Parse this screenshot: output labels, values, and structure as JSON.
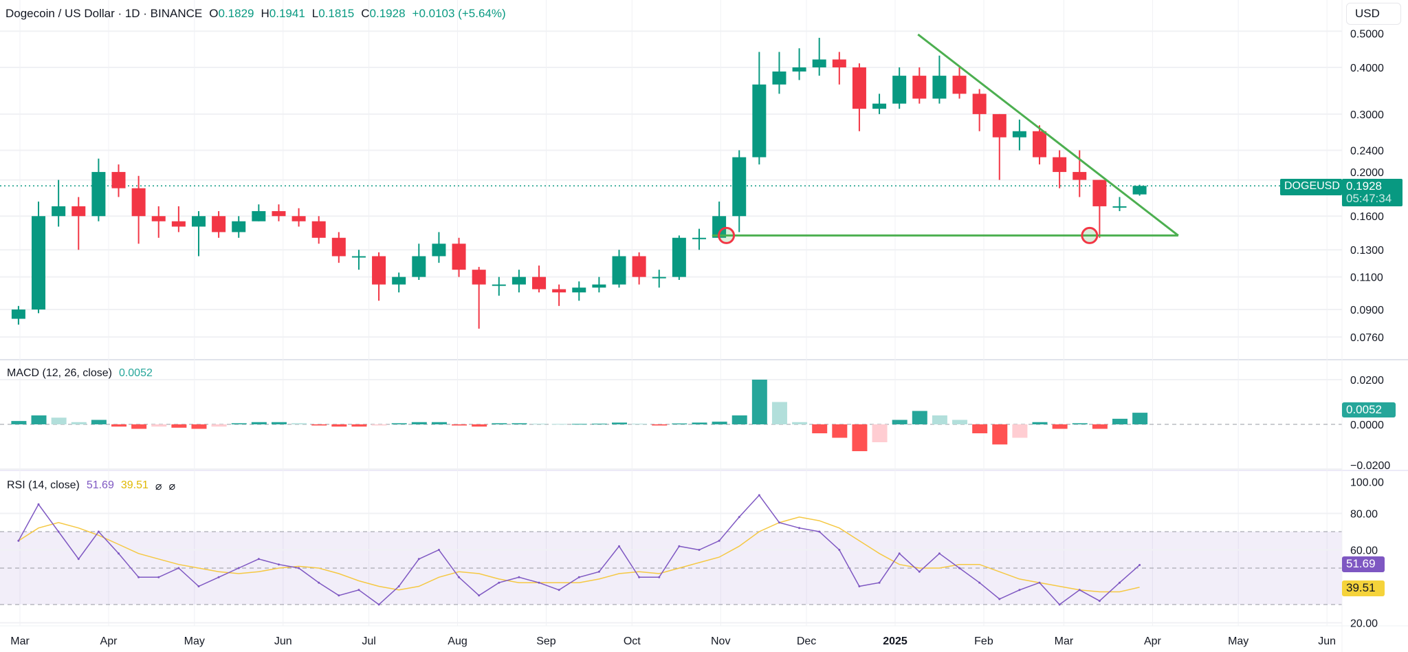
{
  "header": {
    "symbol": "Dogecoin / US Dollar · 1D · BINANCE",
    "open_label": "O",
    "open": "0.1829",
    "high_label": "H",
    "high": "0.1941",
    "low_label": "L",
    "low": "0.1815",
    "close_label": "C",
    "close": "0.1928",
    "change": "+0.0103 (+5.64%)"
  },
  "currency_button": "USD",
  "price_tag": {
    "symbol": "DOGEUSD",
    "price": "0.1928",
    "countdown": "05:47:34"
  },
  "macd": {
    "legend": "MACD (12, 26, close)",
    "value": "0.0052",
    "axis_ticks": [
      "0.0200",
      "0.0000",
      "−0.0200"
    ]
  },
  "rsi": {
    "legend": "RSI (14, close)",
    "value": "51.69",
    "ma_value": "39.51",
    "na1": "⌀",
    "na2": "⌀",
    "axis_ticks": [
      "100.00",
      "80.00",
      "60.00",
      "20.00"
    ]
  },
  "colors": {
    "up": "#089981",
    "down": "#f23645",
    "rsi": "#7e57c2",
    "rsi_ma": "#f5c842",
    "trendline": "#4caf50",
    "circle": "#f23645"
  },
  "chart_data": {
    "type": "candlestick",
    "interval_note": "weekly-aggregated approximation of the daily candles",
    "price_scale": "log",
    "price_ticks": [
      "0.5000",
      "0.4000",
      "0.3000",
      "0.2400",
      "0.2000",
      "0.1600",
      "0.1300",
      "0.1100",
      "0.0900",
      "0.0760"
    ],
    "time_ticks": [
      {
        "label": "Mar",
        "date": "2024-03-01"
      },
      {
        "label": "Apr",
        "date": "2024-04-01"
      },
      {
        "label": "May",
        "date": "2024-05-01"
      },
      {
        "label": "Jun",
        "date": "2024-06-01"
      },
      {
        "label": "Jul",
        "date": "2024-07-01"
      },
      {
        "label": "Aug",
        "date": "2024-08-01"
      },
      {
        "label": "Sep",
        "date": "2024-09-01"
      },
      {
        "label": "Oct",
        "date": "2024-10-01"
      },
      {
        "label": "Nov",
        "date": "2024-11-01"
      },
      {
        "label": "Dec",
        "date": "2024-12-01"
      },
      {
        "label": "2025",
        "date": "2025-01-01"
      },
      {
        "label": "Feb",
        "date": "2025-02-01"
      },
      {
        "label": "Mar",
        "date": "2025-03-01"
      },
      {
        "label": "Apr",
        "date": "2025-04-01"
      },
      {
        "label": "May",
        "date": "2025-05-01"
      },
      {
        "label": "Jun",
        "date": "2025-06-01"
      }
    ],
    "candles": [
      [
        "2024-02-26",
        0.085,
        0.092,
        0.082,
        0.09
      ],
      [
        "2024-03-04",
        0.09,
        0.175,
        0.088,
        0.16
      ],
      [
        "2024-03-11",
        0.16,
        0.2,
        0.15,
        0.17
      ],
      [
        "2024-03-18",
        0.17,
        0.18,
        0.13,
        0.16
      ],
      [
        "2024-03-25",
        0.16,
        0.228,
        0.155,
        0.21
      ],
      [
        "2024-04-01",
        0.21,
        0.22,
        0.18,
        0.19
      ],
      [
        "2024-04-08",
        0.19,
        0.205,
        0.135,
        0.16
      ],
      [
        "2024-04-15",
        0.16,
        0.17,
        0.14,
        0.155
      ],
      [
        "2024-04-22",
        0.155,
        0.17,
        0.145,
        0.15
      ],
      [
        "2024-04-29",
        0.15,
        0.165,
        0.125,
        0.16
      ],
      [
        "2024-05-06",
        0.16,
        0.165,
        0.14,
        0.145
      ],
      [
        "2024-05-13",
        0.145,
        0.16,
        0.14,
        0.155
      ],
      [
        "2024-05-20",
        0.155,
        0.172,
        0.155,
        0.165
      ],
      [
        "2024-05-27",
        0.165,
        0.172,
        0.155,
        0.16
      ],
      [
        "2024-06-03",
        0.16,
        0.168,
        0.15,
        0.155
      ],
      [
        "2024-06-10",
        0.155,
        0.16,
        0.135,
        0.14
      ],
      [
        "2024-06-17",
        0.14,
        0.145,
        0.12,
        0.125
      ],
      [
        "2024-06-24",
        0.125,
        0.13,
        0.115,
        0.125
      ],
      [
        "2024-07-01",
        0.125,
        0.128,
        0.095,
        0.105
      ],
      [
        "2024-07-08",
        0.105,
        0.113,
        0.1,
        0.11
      ],
      [
        "2024-07-15",
        0.11,
        0.135,
        0.108,
        0.125
      ],
      [
        "2024-07-22",
        0.125,
        0.145,
        0.12,
        0.135
      ],
      [
        "2024-07-29",
        0.135,
        0.14,
        0.11,
        0.115
      ],
      [
        "2024-08-05",
        0.115,
        0.117,
        0.08,
        0.105
      ],
      [
        "2024-08-12",
        0.105,
        0.11,
        0.098,
        0.105
      ],
      [
        "2024-08-19",
        0.105,
        0.115,
        0.1,
        0.11
      ],
      [
        "2024-08-26",
        0.11,
        0.118,
        0.1,
        0.102
      ],
      [
        "2024-09-02",
        0.102,
        0.105,
        0.092,
        0.1
      ],
      [
        "2024-09-09",
        0.1,
        0.107,
        0.095,
        0.103
      ],
      [
        "2024-09-16",
        0.103,
        0.11,
        0.1,
        0.105
      ],
      [
        "2024-09-23",
        0.105,
        0.13,
        0.103,
        0.125
      ],
      [
        "2024-09-30",
        0.125,
        0.128,
        0.105,
        0.11
      ],
      [
        "2024-10-07",
        0.11,
        0.115,
        0.103,
        0.11
      ],
      [
        "2024-10-14",
        0.11,
        0.142,
        0.108,
        0.14
      ],
      [
        "2024-10-21",
        0.14,
        0.148,
        0.13,
        0.14
      ],
      [
        "2024-10-28",
        0.14,
        0.175,
        0.14,
        0.16
      ],
      [
        "2024-11-04",
        0.16,
        0.24,
        0.145,
        0.23
      ],
      [
        "2024-11-11",
        0.23,
        0.44,
        0.22,
        0.36
      ],
      [
        "2024-11-18",
        0.36,
        0.44,
        0.34,
        0.39
      ],
      [
        "2024-11-25",
        0.39,
        0.45,
        0.37,
        0.4
      ],
      [
        "2024-12-02",
        0.4,
        0.48,
        0.38,
        0.42
      ],
      [
        "2024-12-09",
        0.42,
        0.44,
        0.36,
        0.4
      ],
      [
        "2024-12-16",
        0.4,
        0.41,
        0.27,
        0.31
      ],
      [
        "2024-12-23",
        0.31,
        0.34,
        0.3,
        0.32
      ],
      [
        "2024-12-30",
        0.32,
        0.4,
        0.31,
        0.38
      ],
      [
        "2025-01-06",
        0.38,
        0.4,
        0.32,
        0.33
      ],
      [
        "2025-01-13",
        0.33,
        0.43,
        0.32,
        0.38
      ],
      [
        "2025-01-20",
        0.38,
        0.4,
        0.33,
        0.34
      ],
      [
        "2025-01-27",
        0.34,
        0.35,
        0.27,
        0.3
      ],
      [
        "2025-02-03",
        0.3,
        0.3,
        0.2,
        0.26
      ],
      [
        "2025-02-10",
        0.26,
        0.29,
        0.24,
        0.27
      ],
      [
        "2025-02-17",
        0.27,
        0.28,
        0.22,
        0.23
      ],
      [
        "2025-02-24",
        0.23,
        0.24,
        0.19,
        0.21
      ],
      [
        "2025-03-03",
        0.21,
        0.24,
        0.18,
        0.2
      ],
      [
        "2025-03-10",
        0.2,
        0.2,
        0.14,
        0.17
      ],
      [
        "2025-03-17",
        0.17,
        0.18,
        0.165,
        0.17
      ],
      [
        "2025-03-24",
        0.1829,
        0.1941,
        0.1815,
        0.1928
      ]
    ],
    "last_price": 0.1928,
    "annotations": {
      "descending_trendline": {
        "from": {
          "date": "2025-01-09",
          "price": 0.49
        },
        "to": {
          "date": "2025-04-10",
          "price": 0.142
        }
      },
      "support_line": {
        "from": {
          "date": "2024-10-29",
          "price": 0.142
        },
        "to": {
          "date": "2025-04-10",
          "price": 0.142
        }
      },
      "circles": [
        {
          "date": "2024-11-03",
          "price": 0.142
        },
        {
          "date": "2025-03-10",
          "price": 0.142
        }
      ]
    },
    "macd_histogram": [
      0.0015,
      0.004,
      0.003,
      0.001,
      0.002,
      -0.001,
      -0.002,
      -0.001,
      -0.0015,
      -0.002,
      -0.001,
      0.0005,
      0.001,
      0.001,
      0.0005,
      -0.0005,
      -0.001,
      -0.001,
      -0.0005,
      0.0005,
      0.001,
      0.001,
      -0.0005,
      -0.001,
      0.0005,
      0.0005,
      0.0003,
      0.0002,
      0.0002,
      0.0003,
      0.0008,
      0.0003,
      -0.0005,
      0.0004,
      0.0008,
      0.0012,
      0.004,
      0.02,
      0.01,
      0.001,
      -0.004,
      -0.006,
      -0.012,
      -0.008,
      0.002,
      0.006,
      0.004,
      0.002,
      -0.004,
      -0.009,
      -0.006,
      0.001,
      -0.002,
      0.0005,
      -0.002,
      0.0025,
      0.0052
    ],
    "macd_range": [
      -0.02,
      0.025
    ],
    "rsi": [
      65,
      85,
      70,
      55,
      70,
      58,
      45,
      45,
      50,
      40,
      45,
      50,
      55,
      52,
      50,
      42,
      35,
      38,
      30,
      40,
      55,
      60,
      45,
      35,
      42,
      45,
      42,
      38,
      45,
      48,
      62,
      45,
      45,
      62,
      60,
      65,
      78,
      90,
      75,
      72,
      70,
      60,
      40,
      42,
      58,
      48,
      58,
      50,
      42,
      33,
      38,
      42,
      30,
      38,
      32,
      42,
      51.69
    ],
    "rsi_ma": [
      65,
      72,
      75,
      72,
      68,
      63,
      58,
      55,
      52,
      50,
      48,
      47,
      48,
      50,
      51,
      50,
      47,
      43,
      40,
      38,
      40,
      45,
      48,
      47,
      44,
      42,
      42,
      42,
      42,
      44,
      47,
      48,
      47,
      50,
      53,
      56,
      62,
      70,
      75,
      78,
      76,
      72,
      65,
      58,
      52,
      50,
      50,
      52,
      52,
      48,
      44,
      42,
      40,
      38,
      37,
      37,
      39.51
    ],
    "rsi_bands": [
      30,
      50,
      70
    ],
    "rsi_range": [
      20,
      100
    ]
  }
}
